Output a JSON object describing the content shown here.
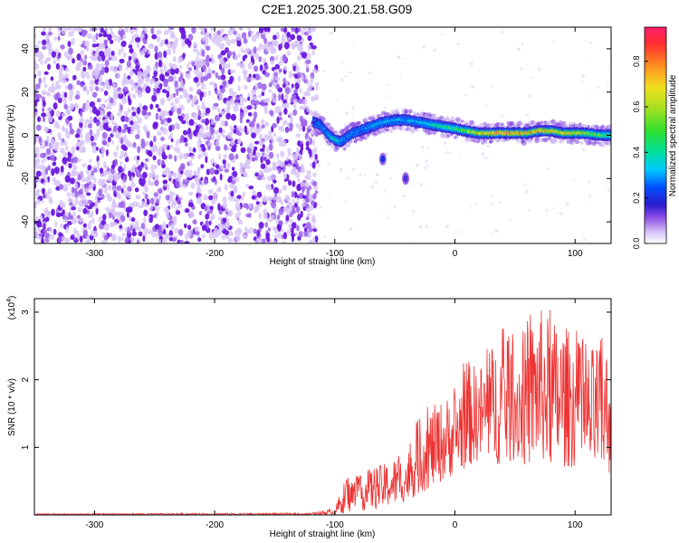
{
  "figure_title": "C2E1.2025.300.21.58.G09",
  "chart_data": [
    {
      "type": "heatmap",
      "panel": "spectrogram",
      "xlabel": "Height of straight line (km)",
      "ylabel": "Frequency (Hz)",
      "xlim": [
        -350,
        130
      ],
      "ylim": [
        -50,
        50
      ],
      "xticks": [
        -300,
        -200,
        -100,
        0,
        100
      ],
      "yticks": [
        -40,
        -20,
        0,
        20,
        40
      ],
      "xtick_labels": [
        "-300",
        "-200",
        "-100",
        "0",
        "100"
      ],
      "ytick_labels": [
        "-40",
        "-20",
        "0",
        "20",
        "40"
      ],
      "noise_region_x": [
        -350,
        -117
      ],
      "signal_trace": {
        "x": [
          -118,
          -112,
          -105,
          -100,
          -95,
          -90,
          -85,
          -80,
          -75,
          -70,
          -60,
          -50,
          -40,
          -30,
          -20,
          -10,
          0,
          10,
          20,
          30,
          40,
          50,
          60,
          70,
          80,
          90,
          100,
          110,
          120,
          130
        ],
        "y": [
          6,
          5,
          0,
          -2,
          -3,
          -1,
          1,
          2,
          3,
          4,
          6,
          7,
          7,
          6,
          5,
          4,
          3,
          2,
          1,
          1,
          1,
          1,
          1,
          2,
          2,
          1,
          1,
          1,
          0,
          0
        ],
        "amplitude": [
          0.2,
          0.3,
          0.35,
          0.4,
          0.35,
          0.3,
          0.3,
          0.3,
          0.3,
          0.35,
          0.35,
          0.35,
          0.35,
          0.35,
          0.4,
          0.45,
          0.5,
          0.6,
          0.7,
          0.8,
          0.85,
          0.8,
          0.75,
          0.8,
          0.75,
          0.7,
          0.7,
          0.6,
          0.55,
          0.5
        ]
      },
      "blobs": [
        {
          "x": -60,
          "y": -11,
          "amplitude": 0.15
        },
        {
          "x": -41,
          "y": -20,
          "amplitude": 0.1
        }
      ],
      "colorbar": {
        "label": "Normalized spectral amplitude",
        "range": [
          0,
          0.95
        ],
        "ticks": [
          0,
          0.2,
          0.4,
          0.6,
          0.8
        ],
        "tick_labels": [
          "0.0",
          "0.2",
          "0.4",
          "0.6",
          "0.8"
        ]
      }
    },
    {
      "type": "line",
      "panel": "snr",
      "xlabel": "Height of straight line (km)",
      "ylabel": "SNR (10 * v/v)",
      "scale_label": "(x10",
      "scale_exponent": "4",
      "scale_close": ")",
      "xlim": [
        -350,
        130
      ],
      "ylim": [
        0,
        3.2
      ],
      "xticks": [
        -300,
        -200,
        -100,
        0,
        100
      ],
      "yticks": [
        1,
        2,
        3
      ],
      "xtick_labels": [
        "-300",
        "-200",
        "-100",
        "0",
        "100"
      ],
      "ytick_labels": [
        "1",
        "2",
        "3"
      ],
      "color": "#ee3333",
      "series_name": "SNR",
      "envelope": {
        "x": [
          -350,
          -120,
          -100,
          -90,
          -80,
          -70,
          -60,
          -50,
          -40,
          -30,
          -20,
          -10,
          0,
          10,
          20,
          30,
          40,
          50,
          60,
          70,
          80,
          90,
          100,
          110,
          120,
          130
        ],
        "upper": [
          0.02,
          0.03,
          0.1,
          0.6,
          0.55,
          0.7,
          0.75,
          0.85,
          0.9,
          1.45,
          1.6,
          1.7,
          1.85,
          2.3,
          2.2,
          2.5,
          2.7,
          2.6,
          2.75,
          3.1,
          2.9,
          2.85,
          2.65,
          2.4,
          2.6,
          2.5
        ],
        "lower": [
          0.0,
          0.0,
          0.0,
          0.03,
          0.05,
          0.08,
          0.1,
          0.15,
          0.2,
          0.3,
          0.4,
          0.5,
          0.6,
          0.7,
          0.8,
          0.8,
          0.7,
          0.8,
          0.7,
          0.8,
          0.7,
          0.7,
          0.7,
          0.6,
          0.6,
          0.6
        ]
      }
    }
  ]
}
